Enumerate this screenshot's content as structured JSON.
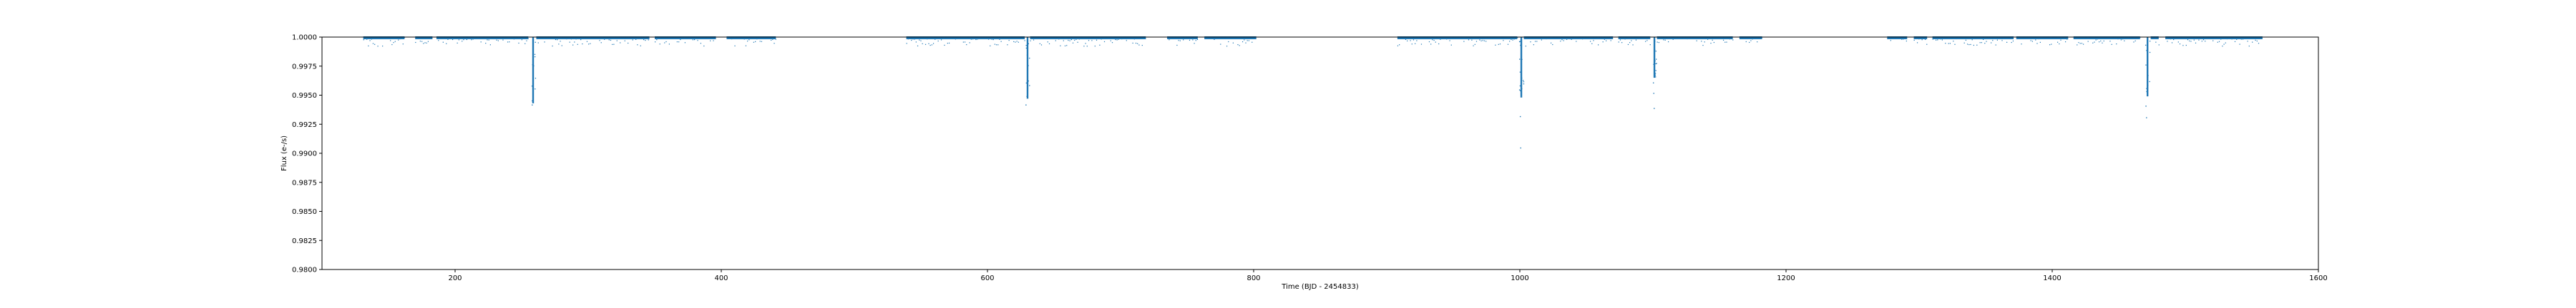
{
  "chart_data": {
    "type": "scatter",
    "title": "",
    "xlabel": "Time (BJD - 2454833)",
    "ylabel": "Flux (e-/s)",
    "xlim": [
      100,
      1600
    ],
    "ylim": [
      0.98,
      1.0
    ],
    "xticks": [
      200,
      400,
      600,
      800,
      1000,
      1200,
      1400,
      1600
    ],
    "yticks": [
      "0.9800",
      "0.9825",
      "0.9850",
      "0.9875",
      "0.9900",
      "0.9925",
      "0.9950",
      "0.9975",
      "1.0000"
    ],
    "grid": false,
    "legend": "none",
    "marker_color": "#1f77b4",
    "segments": [
      [
        131,
        162
      ],
      [
        170,
        183
      ],
      [
        186,
        255
      ],
      [
        261,
        346
      ],
      [
        350,
        396
      ],
      [
        404,
        441
      ],
      [
        539,
        628
      ],
      [
        632,
        719
      ],
      [
        735,
        758
      ],
      [
        763,
        802
      ],
      [
        908,
        998
      ],
      [
        1003,
        1070
      ],
      [
        1074,
        1098
      ],
      [
        1103,
        1160
      ],
      [
        1165,
        1182
      ],
      [
        1276,
        1291
      ],
      [
        1296,
        1306
      ],
      [
        1310,
        1371
      ],
      [
        1373,
        1412
      ],
      [
        1416,
        1466
      ],
      [
        1474,
        1480
      ],
      [
        1485,
        1558
      ]
    ],
    "transits": [
      {
        "x": 258.5,
        "min": 0.9943
      },
      {
        "x": 630.0,
        "min": 0.9947
      },
      {
        "x": 1001.0,
        "min": 0.9948
      },
      {
        "x": 1101.0,
        "min": 0.9965
      },
      {
        "x": 1471.5,
        "min": 0.9949
      }
    ],
    "outliers": [
      {
        "x": 257.9,
        "y": 0.9942
      },
      {
        "x": 628.9,
        "y": 0.9942
      },
      {
        "x": 1000.3,
        "y": 0.9932
      },
      {
        "x": 1000.6,
        "y": 0.9905
      },
      {
        "x": 1001.4,
        "y": 0.9956
      },
      {
        "x": 1100.3,
        "y": 0.9961
      },
      {
        "x": 1100.6,
        "y": 0.9952
      },
      {
        "x": 1100.9,
        "y": 0.9939
      },
      {
        "x": 1470.4,
        "y": 0.9941
      },
      {
        "x": 1470.8,
        "y": 0.9931
      }
    ]
  }
}
